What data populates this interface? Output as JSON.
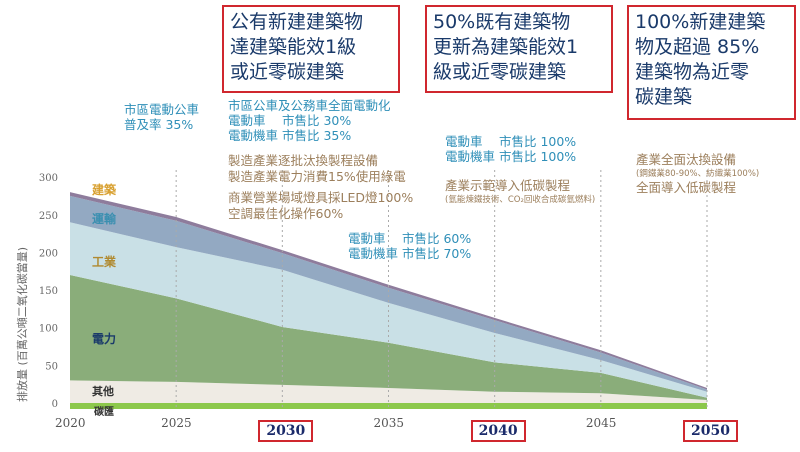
{
  "goals": [
    {
      "text": "公有新建建築物\n達建築能效1級\n或近零碳建築"
    },
    {
      "text": "50%既有建築物\n更新為建築能效1\n級或近零碳建築"
    },
    {
      "text": "100%新建建築\n物及超過 85%\n建築物為近零\n碳建築"
    }
  ],
  "annotations": {
    "a2025": [
      "市區電動公車",
      "普及率 35%"
    ],
    "a2030_teal": [
      "市區公車及公務車全面電動化",
      "電動車　 市售比 30%",
      "電動機車 市售比 35%"
    ],
    "a2030_brown": [
      "製造產業逐批汰換製程設備",
      "製造產業電力消費15%使用綠電"
    ],
    "a2030_brown2": [
      "商業營業場域燈具採LED燈100%",
      "空調最佳化操作60%"
    ],
    "a2035_teal": [
      "電動車　 市售比 60%",
      "電動機車 市售比 70%"
    ],
    "a2040_teal": [
      "電動車　 市售比 100%",
      "電動機車 市售比 100%"
    ],
    "a2040_brown": "產業示範導入低碳製程",
    "a2040_small": "(氫能煉鐵技術、CO₂回收合成碳氫燃料)",
    "a2050_brown": "產業全面汰換設備",
    "a2050_small": "(鋼鐵業80-90%、紡織業100%)",
    "a2050_brown2": "全面導入低碳製程"
  },
  "chart_data": {
    "type": "area",
    "title": "",
    "xlabel": "",
    "ylabel": "排放量 (百萬公噸二氧化碳當量)",
    "x": [
      2020,
      2025,
      2030,
      2035,
      2040,
      2045,
      2050
    ],
    "xticks": [
      "2020",
      "2025",
      "2030",
      "2035",
      "2040",
      "2045",
      "2050"
    ],
    "highlighted_xticks": [
      "2030",
      "2040",
      "2050"
    ],
    "yticks": [
      "0",
      "50",
      "100",
      "150",
      "200",
      "250",
      "300"
    ],
    "ylim": [
      -10,
      300
    ],
    "series": [
      {
        "name": "碳匯",
        "color": "#8cc84b",
        "values": [
          -8,
          -8,
          -8,
          -8,
          -8,
          -8,
          -8
        ]
      },
      {
        "name": "其他",
        "color": "#efebe4",
        "values": [
          30,
          28,
          24,
          20,
          15,
          13,
          4
        ]
      },
      {
        "name": "電力",
        "color": "#8aad7a",
        "values": [
          140,
          111,
          77,
          60,
          39,
          27,
          3
        ]
      },
      {
        "name": "工業",
        "color": "#c9e0e6",
        "values": [
          70,
          68,
          76,
          53,
          39,
          17,
          8
        ]
      },
      {
        "name": "運輸",
        "color": "#93a9c2",
        "values": [
          35,
          35,
          22,
          20,
          17,
          10,
          3
        ]
      },
      {
        "name": "建築",
        "color": "#8e7c9c",
        "values": [
          5,
          5,
          4,
          4,
          3,
          3,
          2
        ]
      }
    ]
  }
}
